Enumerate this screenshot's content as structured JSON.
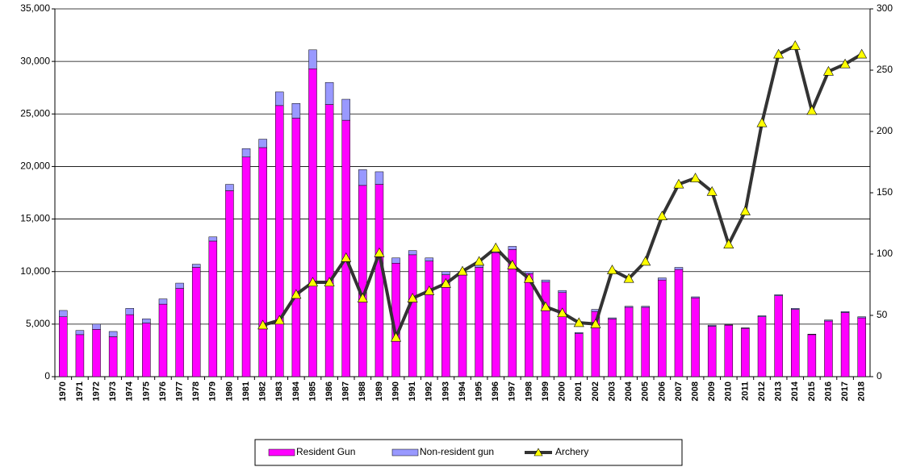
{
  "chart_data": {
    "type": "bar",
    "stacked": true,
    "grid": true,
    "legend": "bottom",
    "categories": [
      "1970",
      "1971",
      "1972",
      "1973",
      "1974",
      "1975",
      "1976",
      "1977",
      "1978",
      "1979",
      "1980",
      "1981",
      "1982",
      "1983",
      "1984",
      "1985",
      "1986",
      "1987",
      "1988",
      "1989",
      "1990",
      "1991",
      "1992",
      "1993",
      "1994",
      "1995",
      "1996",
      "1997",
      "1998",
      "1999",
      "2000",
      "2001",
      "2002",
      "2003",
      "2004",
      "2005",
      "2006",
      "2007",
      "2008",
      "2009",
      "2010",
      "2011",
      "2012",
      "2013",
      "2014",
      "2015",
      "2016",
      "2017",
      "2018"
    ],
    "series": [
      {
        "name": "Resident Gun",
        "type": "bar",
        "color": "#ff00ff",
        "values": [
          5700,
          4000,
          4500,
          3800,
          5900,
          5100,
          6900,
          8400,
          10400,
          12900,
          17700,
          20900,
          21800,
          25800,
          24600,
          29300,
          25900,
          24400,
          18200,
          18300,
          10800,
          11600,
          11000,
          9700,
          9700,
          10400,
          11800,
          12100,
          9800,
          9000,
          8000,
          4100,
          6200,
          5500,
          6600,
          6600,
          9200,
          10200,
          7500,
          4800,
          4900,
          4600,
          5700,
          7700,
          6400,
          4000,
          5300,
          6100,
          5600
        ]
      },
      {
        "name": "Non-resident gun",
        "type": "bar",
        "color": "#9999ff",
        "values": [
          600,
          400,
          500,
          500,
          600,
          400,
          500,
          500,
          300,
          400,
          600,
          800,
          800,
          1300,
          1400,
          1800,
          2100,
          2000,
          1500,
          1200,
          500,
          400,
          300,
          300,
          300,
          300,
          200,
          300,
          200,
          200,
          200,
          100,
          200,
          100,
          100,
          100,
          200,
          200,
          100,
          100,
          50,
          50,
          100,
          100,
          100,
          50,
          100,
          100,
          100
        ]
      },
      {
        "name": "Archery",
        "type": "line",
        "axis": "y2",
        "color": "#333333",
        "marker_color": "#ffff00",
        "values": [
          null,
          null,
          null,
          null,
          null,
          null,
          null,
          null,
          null,
          null,
          null,
          null,
          42,
          46,
          67,
          77,
          77,
          97,
          64,
          101,
          32,
          64,
          70,
          76,
          86,
          94,
          105,
          91,
          80,
          57,
          52,
          44,
          43,
          87,
          80,
          94,
          131,
          157,
          162,
          151,
          108,
          135,
          207,
          263,
          270,
          217,
          249,
          255,
          263
        ]
      }
    ],
    "ylim": [
      0,
      35000
    ],
    "yticks": [
      0,
      {
        "value": 5000,
        "label": "5,000"
      },
      {
        "value": 10000,
        "label": "10,000"
      },
      {
        "value": 15000,
        "label": "15,000"
      },
      {
        "value": 20000,
        "label": "20,000"
      },
      {
        "value": 25000,
        "label": "25,000"
      },
      {
        "value": 30000,
        "label": "30,000"
      },
      {
        "value": 35000,
        "label": "35,000"
      }
    ],
    "y2lim": [
      0,
      300
    ],
    "y2ticks": [
      0,
      50,
      100,
      150,
      200,
      250,
      300
    ]
  }
}
